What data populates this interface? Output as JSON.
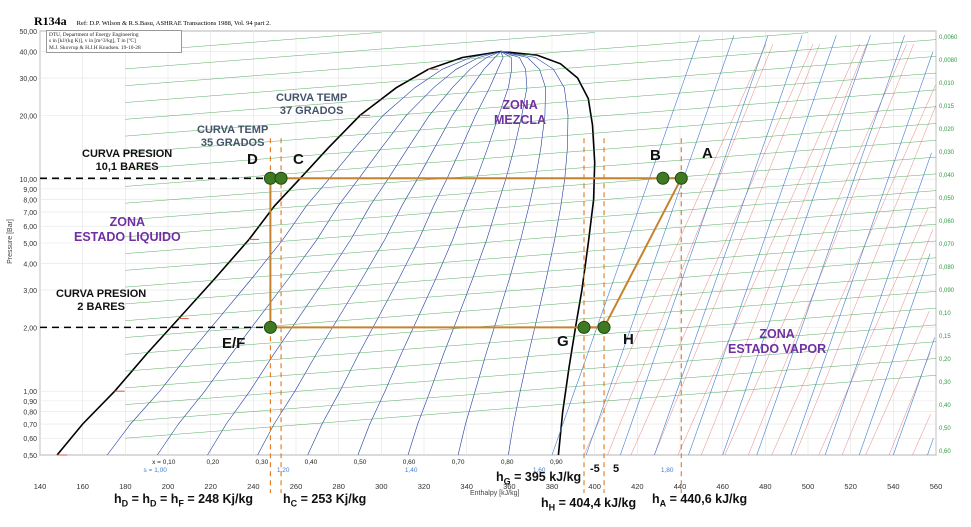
{
  "chart_data": {
    "type": "ph-diagram",
    "title": "R134a",
    "reference": "Ref: D.P. Wilson & R.S.Basu, ASHRAE Transactions 1988, Vol. 94 part 2.",
    "credit_lines": [
      "DTU, Department of Energy Engineering",
      "s in [kJ/(kg K)], v in [m^3/kg], T in [ºC]",
      "M.J. Skovrup & H.J.H Knudsen. 19-10-28"
    ],
    "xlabel": "Enthalpy [kJ/kg]",
    "ylabel": "Pressure [Bar]",
    "x_axis": {
      "min": 140,
      "max": 560,
      "ticks": [
        140,
        160,
        180,
        200,
        220,
        240,
        260,
        280,
        300,
        320,
        340,
        360,
        380,
        400,
        420,
        440,
        460,
        480,
        500,
        520,
        540,
        560
      ]
    },
    "y_axis": {
      "scale": "log",
      "min": 0.5,
      "max": 50,
      "ticks": [
        0.5,
        0.6,
        0.7,
        0.8,
        0.9,
        1,
        2,
        3,
        4,
        5,
        6,
        7,
        8,
        9,
        10,
        20,
        30,
        40,
        50
      ],
      "tick_labels": [
        "0,50",
        "0,60",
        "0,70",
        "0,80",
        "0,90",
        "1,00",
        "2,00",
        "3,00",
        "4,00",
        "5,00",
        "6,00",
        "7,00",
        "8,00",
        "9,00",
        "10,00",
        "20,00",
        "30,00",
        "40,00",
        "50,00"
      ]
    },
    "right_axis_labels": [
      "0,0060",
      "0,0080",
      "0,010",
      "0,015",
      "0,020",
      "0,030",
      "0,040",
      "0,050",
      "0,060",
      "0,070",
      "0,080",
      "0,090",
      "0,10",
      "0,15",
      "0,20",
      "0,30",
      "0,40",
      "0,50",
      "0,60"
    ],
    "quality_labels": [
      "x = 0,10",
      "0,20",
      "0,30",
      "0,40",
      "0,50",
      "0,60",
      "0,70",
      "0,80",
      "0,90"
    ],
    "entropy_labels": [
      "s = 1,00",
      "1,20",
      "1,40",
      "1,60",
      "1,80"
    ],
    "cycle_points": [
      {
        "name": "D",
        "h": 248,
        "p": 10.1
      },
      {
        "name": "C",
        "h": 253,
        "p": 10.1
      },
      {
        "name": "B",
        "h": 432,
        "p": 10.1
      },
      {
        "name": "A",
        "h": 440.6,
        "p": 10.1
      },
      {
        "name": "E/F",
        "h": 248,
        "p": 2
      },
      {
        "name": "G",
        "h": 395,
        "p": 2
      },
      {
        "name": "H",
        "h": 404.4,
        "p": 2
      }
    ],
    "cycle_path": [
      "D",
      "A",
      "H",
      "E/F",
      "D"
    ],
    "pressure_lines": [
      10.1,
      2
    ],
    "enthalpy_marks": [
      248,
      253,
      395,
      404.4,
      440.6
    ]
  },
  "annotations": {
    "curva_presion_1": [
      "CURVA PRESION",
      "10,1 BARES"
    ],
    "curva_presion_2": [
      "CURVA PRESION",
      "2 BARES"
    ],
    "curva_temp_35": [
      "CURVA TEMP",
      "35 GRADOS"
    ],
    "curva_temp_37": [
      "CURVA TEMP",
      "37 GRADOS"
    ],
    "zona_mezcla": [
      "ZONA",
      "MEZCLA"
    ],
    "zona_liquido": [
      "ZONA",
      "ESTADO LIQUIDO"
    ],
    "zona_vapor": [
      "ZONA",
      "ESTADO VAPOR"
    ],
    "minus5": "-5",
    "plus5": "5"
  },
  "enthalpy_values": {
    "hD": {
      "main": "h",
      "s1": "D",
      "eq1": " = h",
      "s2": "D",
      "eq2": " = h",
      "s3": "F",
      "tail": " = 248 Kj/kg"
    },
    "hC": {
      "main": "h",
      "s1": "C",
      "tail": " = 253 Kj/kg"
    },
    "hG": {
      "main": "h",
      "s1": "G",
      "tail": " = 395 kJ/kg"
    },
    "hH": {
      "main": "h",
      "s1": "H",
      "tail": " = 404,4 kJ/kg"
    },
    "hA": {
      "main": "h",
      "s1": "A",
      "tail": " = 440,6 kJ/kg"
    }
  },
  "colors": {
    "cycle": "#c5822f",
    "point": "#3f7a23",
    "saturation": "#000000",
    "isotherm": "#d9534f",
    "quality": "#1f3fa0",
    "entropy": "#3f7fd0",
    "volume": "#2f9a3f"
  }
}
